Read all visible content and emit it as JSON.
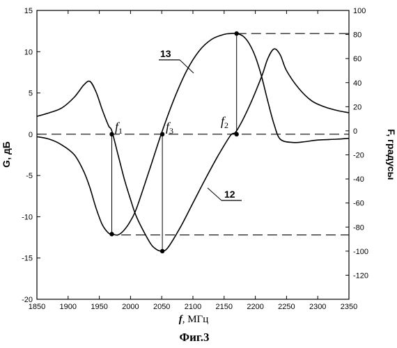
{
  "chart_data": {
    "type": "line",
    "x_label_var": "f",
    "x_label_unit": ", МГц",
    "y_left_label": "G, дБ",
    "y_right_label": "F, градусы",
    "caption": "Фиг.3",
    "xlim": [
      1850,
      2350
    ],
    "ylim_left": [
      -20,
      15
    ],
    "ylim_right": [
      -140,
      100
    ],
    "x_ticks": [
      1850,
      1900,
      1950,
      2000,
      2050,
      2100,
      2150,
      2200,
      2250,
      2300,
      2350
    ],
    "y_left_ticks": [
      -20,
      -15,
      -10,
      -5,
      0,
      5,
      10,
      15
    ],
    "y_right_ticks": [
      -120,
      -100,
      -80,
      -60,
      -40,
      -20,
      0,
      20,
      40,
      60,
      80,
      100
    ],
    "series": [
      {
        "name": "13",
        "axis": "left",
        "x": [
          1850,
          1870,
          1890,
          1910,
          1925,
          1935,
          1945,
          1955,
          1965,
          1970,
          1980,
          1990,
          2000,
          2010,
          2030,
          2050,
          2070,
          2090,
          2110,
          2130,
          2150,
          2160,
          2170,
          2180,
          2190,
          2200,
          2210,
          2220,
          2230,
          2240,
          2260,
          2280,
          2300,
          2330,
          2350
        ],
        "y": [
          -0.3,
          -0.6,
          -1.3,
          -2.5,
          -4.5,
          -6.5,
          -9.0,
          -11.0,
          -12.0,
          -12.1,
          -12.2,
          -11.6,
          -10.5,
          -8.9,
          -4.4,
          0.2,
          4.3,
          7.7,
          10.1,
          11.5,
          12.1,
          12.2,
          12.2,
          11.9,
          11.0,
          9.4,
          7.0,
          4.0,
          1.2,
          -0.6,
          -1.0,
          -0.9,
          -0.7,
          -0.6,
          -0.5
        ]
      },
      {
        "name": "12",
        "axis": "right",
        "x": [
          1850,
          1870,
          1890,
          1910,
          1925,
          1935,
          1945,
          1955,
          1965,
          1970,
          1980,
          1990,
          2000,
          2010,
          2030,
          2040,
          2050,
          2060,
          2080,
          2100,
          2120,
          2140,
          2160,
          2170,
          2190,
          2210,
          2220,
          2230,
          2240,
          2250,
          2270,
          2290,
          2310,
          2330,
          2350
        ],
        "y": [
          12,
          15,
          19,
          28,
          38,
          41,
          32,
          17,
          4,
          0,
          -20,
          -40,
          -57,
          -72,
          -92,
          -98,
          -100,
          -97,
          -80,
          -60,
          -40,
          -21,
          -4,
          0,
          20,
          45,
          60,
          68,
          63,
          50,
          35,
          25,
          20,
          17,
          15
        ]
      }
    ],
    "annotations": [
      {
        "text": "f",
        "sub": "1",
        "x": 1970
      },
      {
        "text": "f",
        "sub": "3",
        "x": 2051
      },
      {
        "text": "f",
        "sub": "2",
        "x": 2170
      },
      {
        "text": "13"
      },
      {
        "text": "12"
      }
    ],
    "reference_lines": {
      "zero_level_left": 0,
      "max_level_left": 12.2,
      "min_level_left": -12.2,
      "phase_min_at_x": 2051,
      "phase_min_value": -100
    },
    "grid": false,
    "legend": "none"
  }
}
